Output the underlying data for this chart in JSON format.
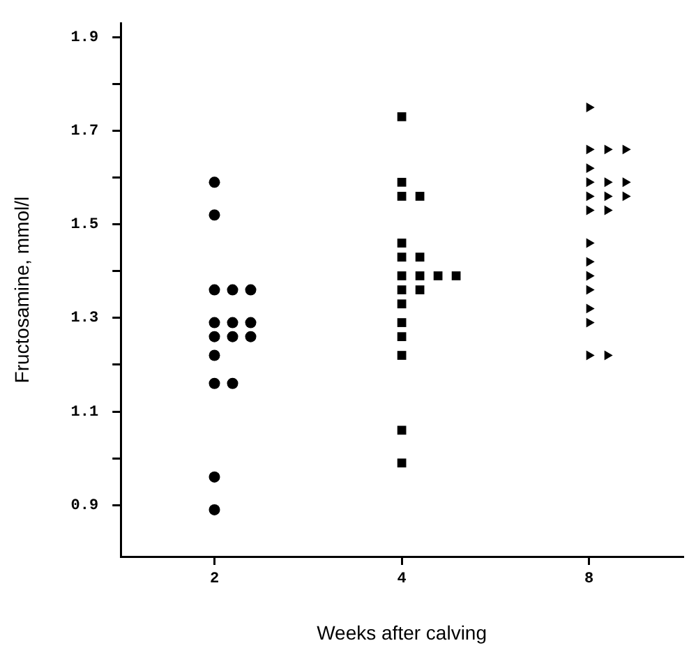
{
  "chart_data": {
    "type": "scatter",
    "xlabel": "Weeks after calving",
    "ylabel": "Fructosamine, mmol/l",
    "categories": [
      "2",
      "4",
      "8"
    ],
    "ylim": [
      0.79,
      1.93
    ],
    "yticks": [
      0.9,
      {
        "value": 1.0,
        "label": null
      },
      1.1,
      {
        "value": 1.2,
        "label": null
      },
      1.3,
      {
        "value": 1.4,
        "label": null
      },
      1.5,
      {
        "value": 1.6,
        "label": null
      },
      1.7,
      {
        "value": 1.8,
        "label": null
      },
      1.9
    ],
    "grid": false,
    "legend": false,
    "series": [
      {
        "type": "scatter",
        "marker": "circle",
        "color": "#000000",
        "x": [
          "2",
          "2",
          "2",
          "2",
          "2",
          "2",
          "2",
          "2",
          "2",
          "2",
          "2",
          "2",
          "2",
          "2",
          "2",
          "2"
        ],
        "values": [
          1.59,
          1.52,
          1.36,
          1.36,
          1.36,
          1.29,
          1.29,
          1.29,
          1.26,
          1.26,
          1.26,
          1.22,
          1.16,
          1.16,
          0.96,
          0.89
        ]
      },
      {
        "type": "scatter",
        "marker": "square",
        "color": "#000000",
        "x": [
          "4",
          "4",
          "4",
          "4",
          "4",
          "4",
          "4",
          "4",
          "4",
          "4",
          "4",
          "4",
          "4",
          "4",
          "4",
          "4",
          "4",
          "4",
          "4"
        ],
        "values": [
          1.73,
          1.59,
          1.56,
          1.56,
          1.46,
          1.43,
          1.43,
          1.39,
          1.39,
          1.39,
          1.39,
          1.36,
          1.36,
          1.33,
          1.29,
          1.26,
          1.22,
          1.06,
          0.99
        ]
      },
      {
        "type": "scatter",
        "marker": "triangle",
        "color": "#000000",
        "x": [
          "8",
          "8",
          "8",
          "8",
          "8",
          "8",
          "8",
          "8",
          "8",
          "8",
          "8",
          "8",
          "8",
          "8",
          "8",
          "8",
          "8",
          "8",
          "8",
          "8",
          "8"
        ],
        "values": [
          1.75,
          1.66,
          1.66,
          1.66,
          1.62,
          1.59,
          1.59,
          1.59,
          1.56,
          1.56,
          1.56,
          1.53,
          1.53,
          1.46,
          1.42,
          1.39,
          1.36,
          1.32,
          1.29,
          1.22,
          1.22
        ]
      }
    ]
  }
}
